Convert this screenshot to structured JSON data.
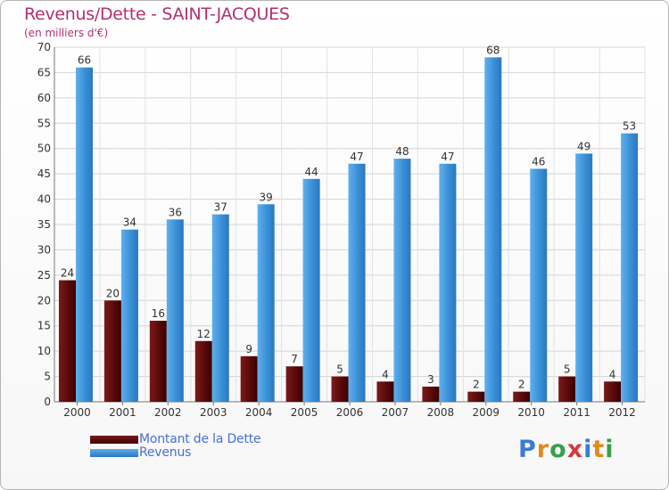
{
  "chart_data": {
    "type": "bar",
    "title": "Revenus/Dette - SAINT-JACQUES",
    "subtitle": "(en milliers d'€)",
    "categories": [
      "2000",
      "2001",
      "2002",
      "2003",
      "2004",
      "2005",
      "2006",
      "2007",
      "2008",
      "2009",
      "2010",
      "2011",
      "2012"
    ],
    "series": [
      {
        "name": "Montant de la Dette",
        "color": "#6b1010",
        "values": [
          24,
          20,
          16,
          12,
          9,
          7,
          5,
          4,
          3,
          2,
          2,
          5,
          4
        ]
      },
      {
        "name": "Revenus",
        "color": "#3d93dc",
        "values": [
          66,
          34,
          36,
          37,
          39,
          44,
          47,
          48,
          47,
          68,
          46,
          49,
          53
        ]
      }
    ],
    "ylim": [
      0,
      70
    ],
    "yticks": [
      0,
      5,
      10,
      15,
      20,
      25,
      30,
      35,
      40,
      45,
      50,
      55,
      60,
      65,
      70
    ],
    "grid": true,
    "legend_position": "bottom-left"
  },
  "logo": {
    "text": "Proxiti"
  }
}
